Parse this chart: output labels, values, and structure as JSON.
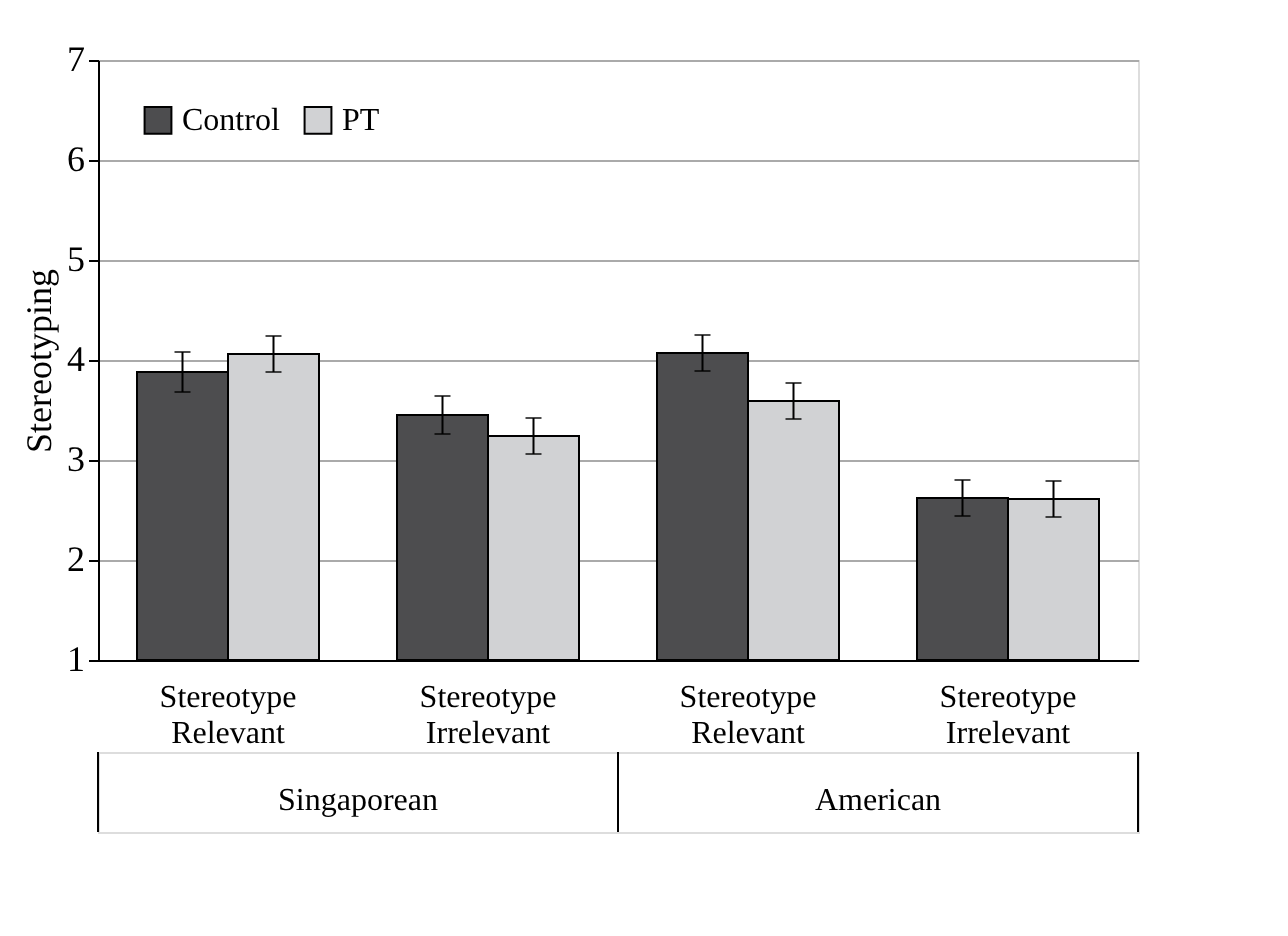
{
  "chart_data": {
    "type": "bar",
    "ylabel": "Stereotyping",
    "categories": [
      "Stereotype Relevant",
      "Stereotype Irrelevant",
      "Stereotype Relevant",
      "Stereotype Irrelevant"
    ],
    "series": [
      {
        "name": "Control",
        "color": "#4d4d4f",
        "values": [
          3.88,
          3.45,
          4.07,
          2.62
        ],
        "errors": [
          0.2,
          0.19,
          0.18,
          0.18
        ]
      },
      {
        "name": "PT",
        "color": "#d1d2d4",
        "values": [
          4.06,
          3.24,
          3.59,
          2.61
        ],
        "errors": [
          0.18,
          0.18,
          0.18,
          0.18
        ]
      }
    ],
    "annotations": [
      "Singaporean",
      "American"
    ],
    "ylim": [
      1,
      7
    ],
    "yticks": [
      1,
      2,
      3,
      4,
      5,
      6,
      7
    ],
    "grid": "y",
    "legend": "top left"
  }
}
